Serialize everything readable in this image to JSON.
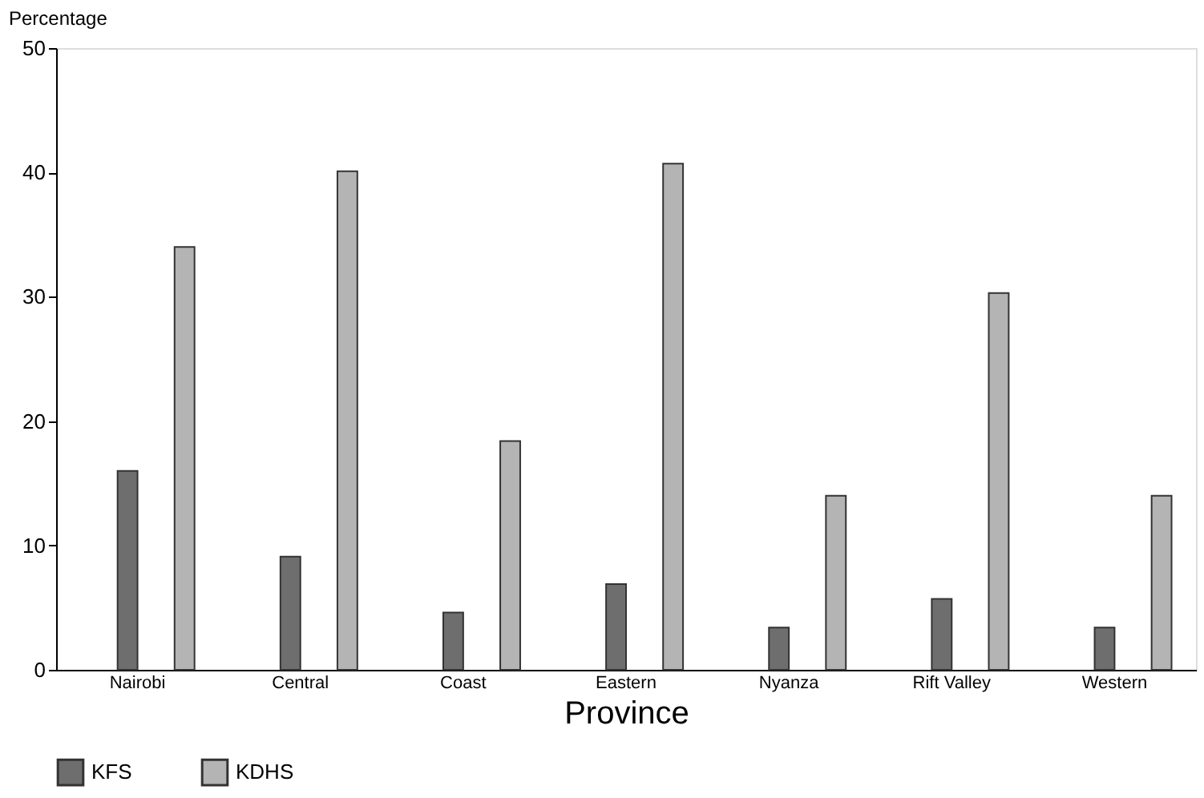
{
  "chart_data": {
    "type": "bar",
    "xlabel": "Province",
    "ylabel": "Percentage",
    "categories": [
      "Nairobi",
      "Central",
      "Coast",
      "Eastern",
      "Nyanza",
      "Rift Valley",
      "Western"
    ],
    "series": [
      {
        "name": "KFS",
        "color": "#6e6e6e",
        "values": [
          16.0,
          9.1,
          4.6,
          6.9,
          3.4,
          5.7,
          3.4
        ]
      },
      {
        "name": "KDHS",
        "color": "#b4b4b4",
        "values": [
          34.0,
          40.1,
          18.4,
          40.7,
          14.0,
          30.3,
          14.0
        ]
      }
    ],
    "ylim": [
      0,
      50
    ],
    "yticks": [
      0,
      10,
      20,
      30,
      40,
      50
    ],
    "grid": false,
    "legend": "bottom"
  }
}
